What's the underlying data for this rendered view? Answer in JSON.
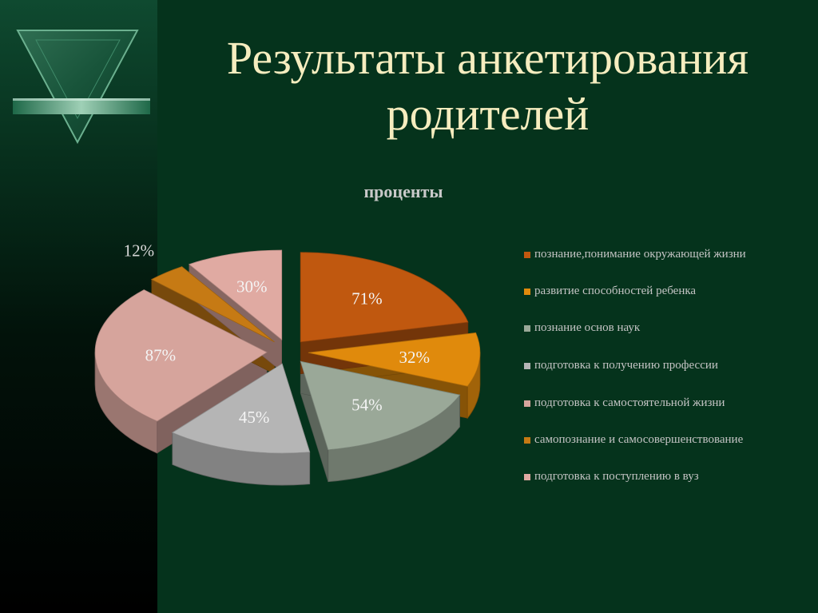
{
  "slide": {
    "title_line1": "Результаты анкетирования",
    "title_line2": "родителей"
  },
  "chart_data": {
    "type": "pie",
    "title": "проценты",
    "categories": [
      "познание,понимание окружающей жизни",
      "развитие способностей ребенка",
      "познание основ наук",
      "подготовка к получению профессии",
      "подготовка к самостоятельной жизни",
      "самопознание и самосовершенствование",
      " подготовка к поступлению в вуз"
    ],
    "values": [
      71,
      32,
      54,
      45,
      87,
      12,
      30
    ],
    "value_labels": [
      "71%",
      "32%",
      "54%",
      "45%",
      "87%",
      "12%",
      "30%"
    ],
    "colors": [
      "#c0580f",
      "#e08a0c",
      "#9aa898",
      "#b5b5b5",
      "#d6a49c",
      "#c67a14",
      "#e0aaa2"
    ],
    "legend_position": "right",
    "exploded": true,
    "three_d": true
  }
}
